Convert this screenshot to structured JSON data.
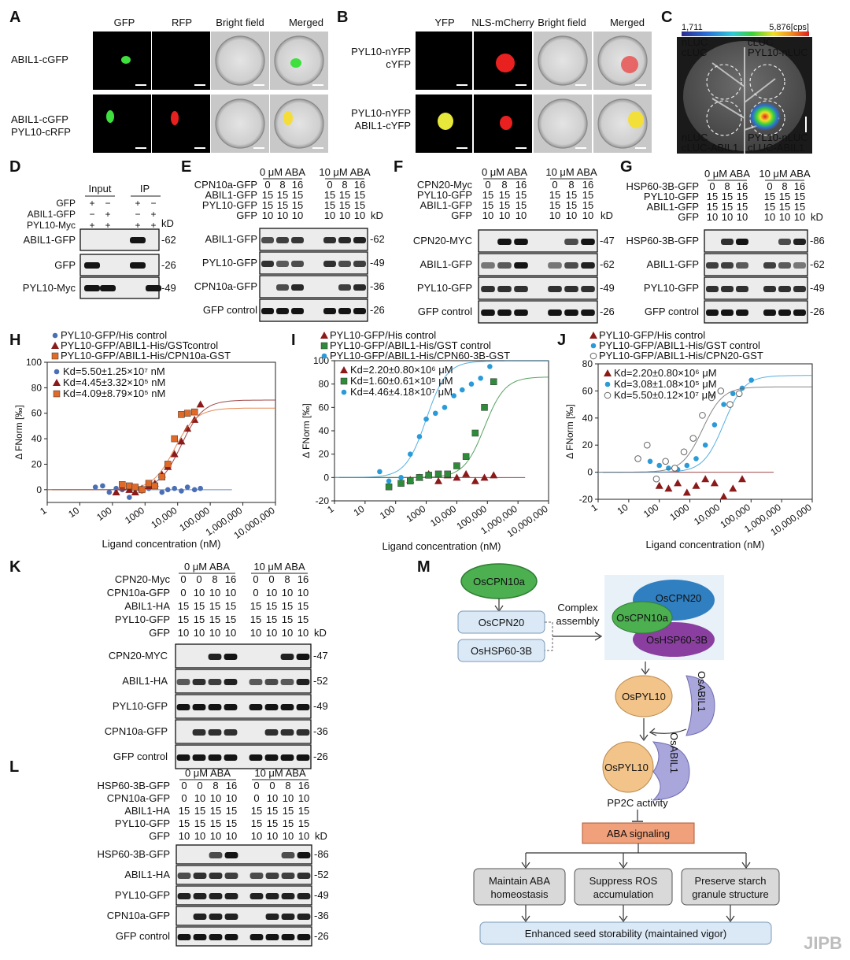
{
  "panelA": {
    "letter": "A",
    "cols": [
      "GFP",
      "RFP",
      "Bright field",
      "Merged"
    ],
    "rows": [
      [
        "ABIL1-cGFP"
      ],
      [
        "ABIL1-cGFP",
        "PYL10-cRFP"
      ]
    ]
  },
  "panelB": {
    "letter": "B",
    "cols": [
      "YFP",
      "NLS-mCherry",
      "Bright field",
      "Merged"
    ],
    "rows": [
      [
        "PYL10-nYFP",
        "cYFP"
      ],
      [
        "PYL10-nYFP",
        "ABIL1-cYFP"
      ]
    ]
  },
  "panelC": {
    "letter": "C",
    "scale_min": "1,711",
    "scale_max": "5,876[cps]",
    "labels": [
      [
        "nLUC",
        "cLUC"
      ],
      [
        "cLUC",
        "PYL10-nLUC"
      ],
      [
        "nLUC",
        "cLUC-ABIL1"
      ],
      [
        "PYL10-nLUC",
        "cLUC-ABIL1"
      ]
    ]
  },
  "panelD": {
    "letter": "D",
    "groups": [
      "Input",
      "IP"
    ],
    "header": [
      {
        "label": "GFP",
        "marks": [
          "+",
          "−",
          "+",
          "−"
        ]
      },
      {
        "label": "ABIL1-GFP",
        "marks": [
          "−",
          "+",
          "−",
          "+"
        ]
      },
      {
        "label": "PYL10-Myc",
        "marks": [
          "+",
          "+",
          "+",
          "+"
        ]
      }
    ],
    "kd": "kD",
    "bands": [
      {
        "label": "ABIL1-GFP",
        "mw": "-62"
      },
      {
        "label": "GFP",
        "mw": "-26"
      },
      {
        "label": "PYL10-Myc",
        "mw": "-49"
      }
    ]
  },
  "panelE": {
    "letter": "E",
    "aba": [
      "0 μM ABA",
      "10 μM ABA"
    ],
    "header": [
      {
        "label": "CPN10a-GFP",
        "vals": [
          "0",
          "8",
          "16",
          "0",
          "8",
          "16"
        ]
      },
      {
        "label": "ABIL1-GFP",
        "vals": [
          "15",
          "15",
          "15",
          "15",
          "15",
          "15"
        ]
      },
      {
        "label": "PYL10-GFP",
        "vals": [
          "15",
          "15",
          "15",
          "15",
          "15",
          "15"
        ]
      },
      {
        "label": "GFP",
        "vals": [
          "10",
          "10",
          "10",
          "10",
          "10",
          "10"
        ]
      }
    ],
    "kd": "kD",
    "bands": [
      {
        "label": "ABIL1-GFP",
        "mw": "-62"
      },
      {
        "label": "PYL10-GFP",
        "mw": "-49"
      },
      {
        "label": "CPN10a-GFP",
        "mw": "-36"
      },
      {
        "label": "GFP control",
        "mw": "-26"
      }
    ]
  },
  "panelF": {
    "letter": "F",
    "aba": [
      "0 μM ABA",
      "10 μM ABA"
    ],
    "header": [
      {
        "label": "CPN20-Myc",
        "vals": [
          "0",
          "8",
          "16",
          "0",
          "8",
          "16"
        ]
      },
      {
        "label": "PYL10-GFP",
        "vals": [
          "15",
          "15",
          "15",
          "15",
          "15",
          "15"
        ]
      },
      {
        "label": "ABIL1-GFP",
        "vals": [
          "15",
          "15",
          "15",
          "15",
          "15",
          "15"
        ]
      },
      {
        "label": "GFP",
        "vals": [
          "10",
          "10",
          "10",
          "10",
          "10",
          "10"
        ]
      }
    ],
    "kd": "kD",
    "bands": [
      {
        "label": "CPN20-MYC",
        "mw": "-47"
      },
      {
        "label": "ABIL1-GFP",
        "mw": "-62"
      },
      {
        "label": "PYL10-GFP",
        "mw": "-49"
      },
      {
        "label": "GFP control",
        "mw": "-26"
      }
    ]
  },
  "panelG": {
    "letter": "G",
    "aba": [
      "0 μM ABA",
      "10 μM ABA"
    ],
    "header": [
      {
        "label": "HSP60-3B-GFP",
        "vals": [
          "0",
          "8",
          "16",
          "0",
          "8",
          "16"
        ]
      },
      {
        "label": "PYL10-GFP",
        "vals": [
          "15",
          "15",
          "15",
          "15",
          "15",
          "15"
        ]
      },
      {
        "label": "ABIL1-GFP",
        "vals": [
          "15",
          "15",
          "15",
          "15",
          "15",
          "15"
        ]
      },
      {
        "label": "GFP",
        "vals": [
          "10",
          "10",
          "10",
          "10",
          "10",
          "10"
        ]
      }
    ],
    "kd": "kD",
    "bands": [
      {
        "label": "HSP60-3B-GFP",
        "mw": "-86"
      },
      {
        "label": "ABIL1-GFP",
        "mw": "-62"
      },
      {
        "label": "PYL10-GFP",
        "mw": "-49"
      },
      {
        "label": "GFP control",
        "mw": "-26"
      }
    ]
  },
  "panelK": {
    "letter": "K",
    "aba": [
      "0 μM ABA",
      "10 μM ABA"
    ],
    "header": [
      {
        "label": "CPN20-Myc",
        "vals": [
          "0",
          "0",
          "8",
          "16",
          "0",
          "0",
          "8",
          "16"
        ]
      },
      {
        "label": "CPN10a-GFP",
        "vals": [
          "0",
          "10",
          "10",
          "10",
          "0",
          "10",
          "10",
          "10"
        ]
      },
      {
        "label": "ABIL1-HA",
        "vals": [
          "15",
          "15",
          "15",
          "15",
          "15",
          "15",
          "15",
          "15"
        ]
      },
      {
        "label": "PYL10-GFP",
        "vals": [
          "15",
          "15",
          "15",
          "15",
          "15",
          "15",
          "15",
          "15"
        ]
      },
      {
        "label": "GFP",
        "vals": [
          "10",
          "10",
          "10",
          "10",
          "10",
          "10",
          "10",
          "10"
        ]
      }
    ],
    "kd": "kD",
    "bands": [
      {
        "label": "CPN20-MYC",
        "mw": "-47"
      },
      {
        "label": "ABIL1-HA",
        "mw": "-52"
      },
      {
        "label": "PYL10-GFP",
        "mw": "-49"
      },
      {
        "label": "CPN10a-GFP",
        "mw": "-36"
      },
      {
        "label": "GFP control",
        "mw": "-26"
      }
    ]
  },
  "panelL": {
    "letter": "L",
    "aba": [
      "0 μM ABA",
      "10 μM ABA"
    ],
    "header": [
      {
        "label": "HSP60-3B-GFP",
        "vals": [
          "0",
          "0",
          "8",
          "16",
          "0",
          "0",
          "8",
          "16"
        ]
      },
      {
        "label": "CPN10a-GFP",
        "vals": [
          "0",
          "10",
          "10",
          "10",
          "0",
          "10",
          "10",
          "10"
        ]
      },
      {
        "label": "ABIL1-HA",
        "vals": [
          "15",
          "15",
          "15",
          "15",
          "15",
          "15",
          "15",
          "15"
        ]
      },
      {
        "label": "PYL10-GFP",
        "vals": [
          "15",
          "15",
          "15",
          "15",
          "15",
          "15",
          "15",
          "15"
        ]
      },
      {
        "label": "GFP",
        "vals": [
          "10",
          "10",
          "10",
          "10",
          "10",
          "10",
          "10",
          "10"
        ]
      }
    ],
    "kd": "kD",
    "bands": [
      {
        "label": "HSP60-3B-GFP",
        "mw": "-86"
      },
      {
        "label": "ABIL1-HA",
        "mw": "-52"
      },
      {
        "label": "PYL10-GFP",
        "mw": "-49"
      },
      {
        "label": "CPN10a-GFP",
        "mw": "-36"
      },
      {
        "label": "GFP control",
        "mw": "-26"
      }
    ]
  },
  "panelM": {
    "letter": "M",
    "cpn10a": "OsCPN10a",
    "cpn20": "OsCPN20",
    "hsp": "OsHSP60-3B",
    "assembly": [
      "Complex",
      "assembly"
    ],
    "complex_cpn20": "OsCPN20",
    "complex_cpn10a": "OsCPN10a",
    "complex_hsp": "OsHSP60-3B",
    "pyl10": "OsPYL10",
    "abil1": "OsABIL1",
    "pyl10_b": "OsPYL10",
    "abil1_b": "OsABIL1",
    "pp2c": "PP2C activity",
    "aba_signaling": "ABA signaling",
    "outcomes": [
      [
        "Maintain ABA",
        "homeostasis"
      ],
      [
        "Suppress ROS",
        "accumulation"
      ],
      [
        "Preserve starch",
        "granule structure"
      ]
    ],
    "final": "Enhanced seed storability (maintained vigor)"
  },
  "watermark": "JIPB",
  "chart_data": [
    {
      "panel": "H",
      "type": "scatter",
      "xscale": "log",
      "xlabel": "Ligand concentration (nM)",
      "ylabel": "Δ FNorm [‰]",
      "xlim": [
        1,
        10000000
      ],
      "ylim": [
        -10,
        100
      ],
      "xticks": [
        "1",
        "10",
        "100",
        "1000",
        "10,000",
        "100,000",
        "1,000,000",
        "10,000,000"
      ],
      "yticks": [
        "0",
        "20",
        "40",
        "60",
        "80",
        "100"
      ],
      "legend_position": "top-left",
      "series": [
        {
          "name": "PYL10-GFP/His control",
          "marker": "circle",
          "color": "#4a6fb5",
          "kd_label": "Kd=5.50±1.25×10⁷ nM",
          "x": [
            30,
            50,
            80,
            130,
            200,
            330,
            500,
            800,
            1300,
            2000,
            3300,
            5000,
            8000,
            13000,
            20000,
            33000,
            50000
          ],
          "y": [
            2,
            3,
            -2,
            1,
            0,
            -6,
            2,
            -1,
            1,
            3,
            -2,
            0,
            1,
            -1,
            2,
            0,
            1
          ]
        },
        {
          "name": "PYL10-GFP/ABIL1-His/GSTcontrol",
          "marker": "triangle",
          "color": "#8b1a1a",
          "kd_label": "Kd=4.45±3.32×10⁵ nM",
          "x": [
            130,
            200,
            330,
            500,
            800,
            1300,
            2000,
            3300,
            5000,
            8000,
            13000,
            20000,
            33000,
            50000
          ],
          "y": [
            -2,
            2,
            0,
            -2,
            1,
            3,
            5,
            12,
            18,
            28,
            38,
            48,
            55,
            67
          ]
        },
        {
          "name": "PYL10-GFP/ABIL1-His/CPN10a-GST",
          "marker": "square",
          "color": "#e06a28",
          "kd_label": "Kd=4.09±8.79×10⁵ nM",
          "x": [
            200,
            330,
            500,
            800,
            1300,
            2000,
            3300,
            5000,
            8000,
            13000,
            20000,
            33000
          ],
          "y": [
            4,
            3,
            2,
            0,
            5,
            3,
            10,
            20,
            40,
            59,
            60,
            61
          ]
        }
      ]
    },
    {
      "panel": "I",
      "type": "scatter",
      "xscale": "log",
      "xlabel": "Ligand concentration (nM)",
      "ylabel": "Δ FNorm [‰]",
      "xlim": [
        1,
        10000000
      ],
      "ylim": [
        -20,
        100
      ],
      "xticks": [
        "1",
        "10",
        "100",
        "1000",
        "10,000",
        "100,000",
        "1,000,000",
        "10,000,000"
      ],
      "yticks": [
        "-20",
        "0",
        "20",
        "40",
        "60",
        "80",
        "100"
      ],
      "legend_position": "top-left",
      "series": [
        {
          "name": "PYL10-GFP/His control",
          "marker": "triangle",
          "color": "#8b1a1a",
          "kd_label": "Kd=2.20±0.80×10⁶ μM",
          "x": [
            300,
            600,
            1200,
            2500,
            5000,
            10000,
            20000,
            40000,
            80000,
            160000
          ],
          "y": [
            -2,
            0,
            3,
            -3,
            2,
            0,
            3,
            -3,
            0,
            2
          ]
        },
        {
          "name": "PYL10-GFP/ABIL1-His/GST control",
          "marker": "square",
          "color": "#2e8b3a",
          "kd_label": "Kd=1.60±0.61×10⁵ μM",
          "x": [
            60,
            150,
            300,
            600,
            1200,
            2500,
            5000,
            10000,
            20000,
            40000,
            80000,
            160000
          ],
          "y": [
            -8,
            -5,
            -3,
            0,
            2,
            3,
            3,
            10,
            18,
            38,
            60,
            82
          ]
        },
        {
          "name": "PYL10-GFP/ABIL1-His/CPN60-3B-GST",
          "marker": "circle",
          "color": "#2a9bd8",
          "kd_label": "Kd=4.46±4.18×10⁷ μM",
          "x": [
            30,
            60,
            150,
            300,
            600,
            1000,
            2000,
            4000,
            8000,
            15000,
            30000,
            60000,
            120000
          ],
          "y": [
            5,
            -3,
            0,
            20,
            35,
            50,
            55,
            60,
            70,
            75,
            80,
            85,
            95
          ]
        }
      ]
    },
    {
      "panel": "J",
      "type": "scatter",
      "xscale": "log",
      "xlabel": "Ligand concentration (nM)",
      "ylabel": "Δ FNorm [‰]",
      "xlim": [
        1,
        10000000
      ],
      "ylim": [
        -20,
        80
      ],
      "xticks": [
        "1",
        "10",
        "100",
        "1000",
        "10,000",
        "100,000",
        "1,000,000",
        "10,000,000"
      ],
      "yticks": [
        "-20",
        "0",
        "20",
        "40",
        "60",
        "80"
      ],
      "legend_position": "top-left",
      "series": [
        {
          "name": "PYL10-GFP/His control",
          "marker": "triangle",
          "color": "#8b1a1a",
          "kd_label": "Kd=2.20±0.80×10⁶ μM",
          "x": [
            100,
            200,
            400,
            800,
            1600,
            3200,
            6400,
            12800,
            25600,
            51200
          ],
          "y": [
            -10,
            -12,
            -8,
            -15,
            -10,
            -5,
            -8,
            -18,
            -12,
            -5
          ]
        },
        {
          "name": "PYL10-GFP/ABIL1-His/GST control",
          "marker": "circle",
          "color": "#2a9bd8",
          "kd_label": "Kd=3.08±1.08×10⁵ μM",
          "x": [
            50,
            100,
            200,
            400,
            800,
            1600,
            3200,
            6400,
            12800,
            25600,
            51200,
            102400
          ],
          "y": [
            8,
            5,
            3,
            2,
            5,
            10,
            20,
            35,
            50,
            58,
            62,
            68
          ]
        },
        {
          "name": "PYL10-GFP/ABIL1-His/CPN20-GST",
          "marker": "ring",
          "color": "#666666",
          "kd_label": "Kd=5.50±0.12×10⁷ μM",
          "x": [
            20,
            40,
            80,
            160,
            320,
            640,
            1280,
            2560,
            5120,
            10240,
            20480,
            40960
          ],
          "y": [
            10,
            20,
            -5,
            8,
            3,
            15,
            25,
            42,
            55,
            60,
            50,
            58
          ]
        }
      ]
    }
  ]
}
